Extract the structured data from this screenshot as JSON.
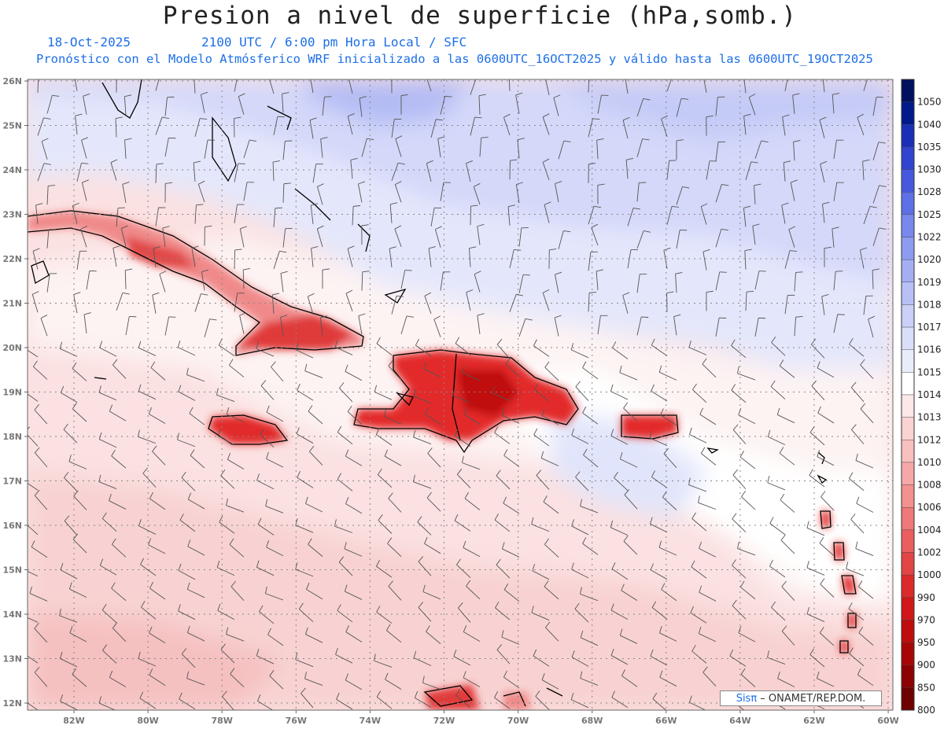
{
  "header": {
    "title": "Presion a nivel de superficie (hPa,somb.)",
    "date": "18-Oct-2025",
    "valid_time": "2100 UTC / 6:00 pm Hora Local / SFC",
    "description": "Pronóstico con el Modelo Atmósferico WRF inicializado a las 0600UTC_16OCT2025 y válido hasta las  0600UTC_19OCT2025"
  },
  "map": {
    "lat_labels": [
      "26N",
      "25N",
      "24N",
      "23N",
      "22N",
      "21N",
      "20N",
      "19N",
      "18N",
      "17N",
      "16N",
      "15N",
      "14N",
      "13N",
      "12N"
    ],
    "lon_labels": [
      "82W",
      "80W",
      "78W",
      "76W",
      "74W",
      "72W",
      "70W",
      "68W",
      "66W",
      "64W",
      "62W",
      "60W"
    ],
    "variable": "surface pressure",
    "overlay": "wind barbs"
  },
  "colorbar": {
    "levels": [
      "1050",
      "1040",
      "1035",
      "1030",
      "1028",
      "1025",
      "1022",
      "1020",
      "1019",
      "1018",
      "1017",
      "1016",
      "1015",
      "1014",
      "1013",
      "1012",
      "1010",
      "1008",
      "1006",
      "1004",
      "1002",
      "1000",
      "990",
      "970",
      "950",
      "900",
      "850",
      "800"
    ],
    "colors": [
      "#00105e",
      "#001a8c",
      "#1a2fb8",
      "#3044d0",
      "#4658de",
      "#5e70e6",
      "#7888ec",
      "#8e9cf0",
      "#a4aff3",
      "#b8c0f6",
      "#cad0f8",
      "#dadff9",
      "#e9ecfb",
      "#ffffff",
      "#fde8e8",
      "#fbd3d3",
      "#f9c0c0",
      "#f6a8a8",
      "#f39090",
      "#ef7878",
      "#ea5e5e",
      "#e34444",
      "#dc2a2a",
      "#d01818",
      "#c00c0c",
      "#a80606",
      "#8c0202",
      "#6e0000"
    ]
  },
  "credit": {
    "brand": "Sisπ",
    "text": " – ONAMET/REP.DOM."
  }
}
